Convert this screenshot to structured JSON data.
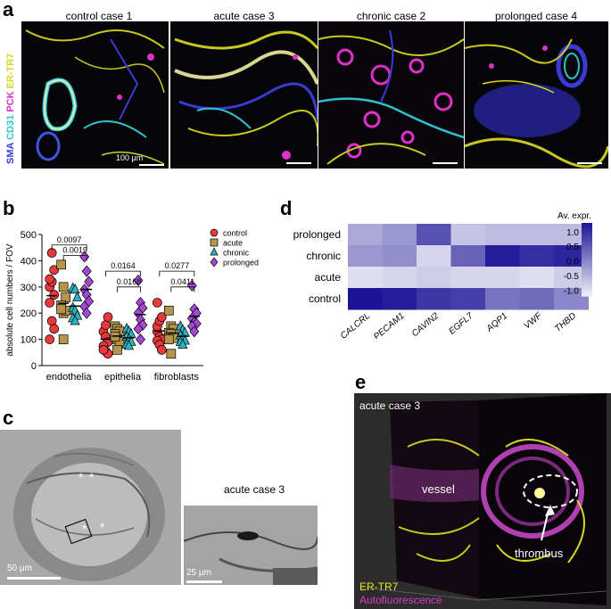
{
  "panel_a": {
    "letter": "a",
    "cases": [
      "control case 1",
      "acute case 3",
      "chronic case 2",
      "prolonged case 4"
    ],
    "channels": [
      {
        "name": "SMA",
        "color": "#3a3ad8"
      },
      {
        "name": "CD31",
        "color": "#33c6d6"
      },
      {
        "name": "PCK",
        "color": "#e030c8"
      },
      {
        "name": "ER-TR7",
        "color": "#d8d820"
      }
    ],
    "scale_label": "100 μm"
  },
  "panel_b": {
    "letter": "b",
    "chart_data": {
      "type": "scatter",
      "ylabel": "absolute cell numbers / FOV",
      "ylim": [
        0,
        500
      ],
      "yticks": [
        0,
        100,
        200,
        300,
        400,
        500
      ],
      "categories": [
        "endothelia",
        "epithelia",
        "fibroblasts"
      ],
      "legend_position": "right",
      "series": [
        {
          "name": "control",
          "color": "#e8383a",
          "marker": "circle",
          "values": [
            [
              300,
              320,
              270,
              240,
              170,
              140,
              100,
              430,
              365,
              330
            ],
            [
              130,
              110,
              90,
              75,
              55,
              45,
              60,
              155,
              185
            ],
            [
              130,
              110,
              100,
              95,
              80,
              60,
              150,
              170,
              185,
              240
            ]
          ]
        },
        {
          "name": "acute",
          "color": "#b5954a",
          "marker": "square",
          "values": [
            [
              385,
              300,
              260,
              230,
              200,
              210,
              215,
              100
            ],
            [
              150,
              140,
              130,
              120,
              100,
              90,
              110,
              60
            ],
            [
              210,
              150,
              140,
              125,
              120,
              105,
              100,
              45
            ]
          ]
        },
        {
          "name": "chronic",
          "color": "#2fb0c0",
          "marker": "triangle",
          "values": [
            [
              295,
              290,
              260,
              220,
              210,
              190,
              180,
              170
            ],
            [
              140,
              130,
              120,
              110,
              100,
              90,
              80,
              75
            ],
            [
              150,
              135,
              125,
              115,
              105,
              95,
              90,
              80
            ]
          ]
        },
        {
          "name": "prolonged",
          "color": "#a448d4",
          "marker": "diamond",
          "values": [
            [
              415,
              360,
              320,
              290,
              270,
              245,
              225,
              200
            ],
            [
              325,
              240,
              220,
              200,
              175,
              155,
              140,
              100
            ],
            [
              305,
              215,
              200,
              180,
              165,
              160,
              150,
              130
            ]
          ]
        }
      ],
      "annotations": [
        {
          "text": "0.0097",
          "group": "endothelia",
          "from": "control",
          "to": "prolonged",
          "y": 460
        },
        {
          "text": "0.0019",
          "group": "endothelia",
          "from": "acute",
          "to": "prolonged",
          "y": 420
        },
        {
          "text": "0.0164",
          "group": "epithelia",
          "from": "control",
          "to": "prolonged",
          "y": 360
        },
        {
          "text": "0.0168",
          "group": "epithelia",
          "from": "acute",
          "to": "prolonged",
          "y": 300
        },
        {
          "text": "0.0277",
          "group": "fibroblasts",
          "from": "control",
          "to": "prolonged",
          "y": 360
        },
        {
          "text": "0.0411",
          "group": "fibroblasts",
          "from": "acute",
          "to": "prolonged",
          "y": 300
        }
      ]
    }
  },
  "panel_c": {
    "letter": "c",
    "case": "acute case 3",
    "scale_large": "50 μm",
    "scale_small": "25 μm"
  },
  "panel_d": {
    "letter": "d",
    "chart_data": {
      "type": "heatmap",
      "rows": [
        "prolonged",
        "chronic",
        "acute",
        "control"
      ],
      "columns": [
        "CALCRL",
        "PECAM1",
        "CAVIN2",
        "EGFL7",
        "AQP1",
        "VWF",
        "THBD"
      ],
      "values": [
        [
          -0.4,
          -0.2,
          0.6,
          -0.7,
          -0.6,
          -0.6,
          -0.6
        ],
        [
          -0.2,
          -0.1,
          -0.9,
          0.4,
          1.2,
          1.0,
          1.1
        ],
        [
          -1.0,
          -0.9,
          -0.8,
          -0.9,
          -0.9,
          -1.0,
          -0.8
        ],
        [
          1.3,
          1.2,
          0.9,
          0.8,
          0.2,
          0.3,
          0.0
        ]
      ],
      "colorbar_label": "Av. expr.",
      "colorbar_ticks": [
        1.0,
        0.5,
        0.0,
        -0.5,
        -1.0
      ],
      "colorbar_range": [
        -1.2,
        1.3
      ],
      "color_low": "#f0f0f8",
      "color_high": "#1c1396"
    }
  },
  "panel_e": {
    "letter": "e",
    "case": "acute case 3",
    "vessel_label": "vessel",
    "thrombus_label": "thrombus",
    "legend": [
      {
        "text": "ER-TR7",
        "color": "#e6e620"
      },
      {
        "text": "Autofluorescence",
        "color": "#d83ac8"
      }
    ]
  }
}
